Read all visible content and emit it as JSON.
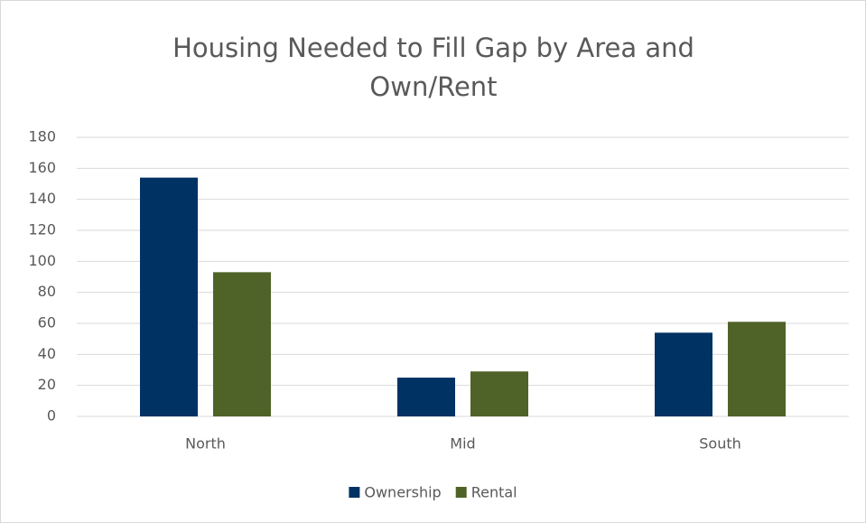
{
  "chart_data": {
    "type": "bar",
    "title": "Housing Needed to Fill Gap by Area and Own/Rent",
    "categories": [
      "North",
      "Mid",
      "South"
    ],
    "series": [
      {
        "name": "Ownership",
        "color": "#003264",
        "values": [
          154,
          25,
          54
        ]
      },
      {
        "name": "Rental",
        "color": "#4f6228",
        "values": [
          93,
          29,
          61
        ]
      }
    ],
    "ylim": [
      0,
      180
    ],
    "yticks": [
      0,
      20,
      40,
      60,
      80,
      100,
      120,
      140,
      160,
      180
    ],
    "grid": true,
    "legend": "bottom"
  }
}
